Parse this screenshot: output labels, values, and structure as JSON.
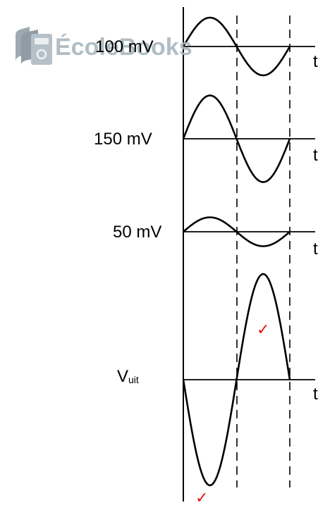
{
  "watermark": {
    "text": "ÉcoleBooks",
    "icon": "book-stack-icon",
    "color": "#a9b6bf"
  },
  "rows": [
    {
      "id": "input-100",
      "label": "100 mV",
      "axis_label": "t",
      "amplitude_mV": 100,
      "phase": "positive-first"
    },
    {
      "id": "input-150",
      "label": "150 mV",
      "axis_label": "t",
      "amplitude_mV": 150,
      "phase": "positive-first"
    },
    {
      "id": "input-50",
      "label": "50 mV",
      "axis_label": "t",
      "amplitude_mV": 50,
      "phase": "positive-first"
    },
    {
      "id": "output",
      "label_main": "V",
      "label_sub": "uit",
      "axis_label": "t",
      "amplitude_mV": 300,
      "phase": "negative-first"
    }
  ],
  "marks": {
    "check_symbol": "✓",
    "color": "#e8141c"
  },
  "colors": {
    "line": "#000000",
    "background": "#ffffff"
  }
}
